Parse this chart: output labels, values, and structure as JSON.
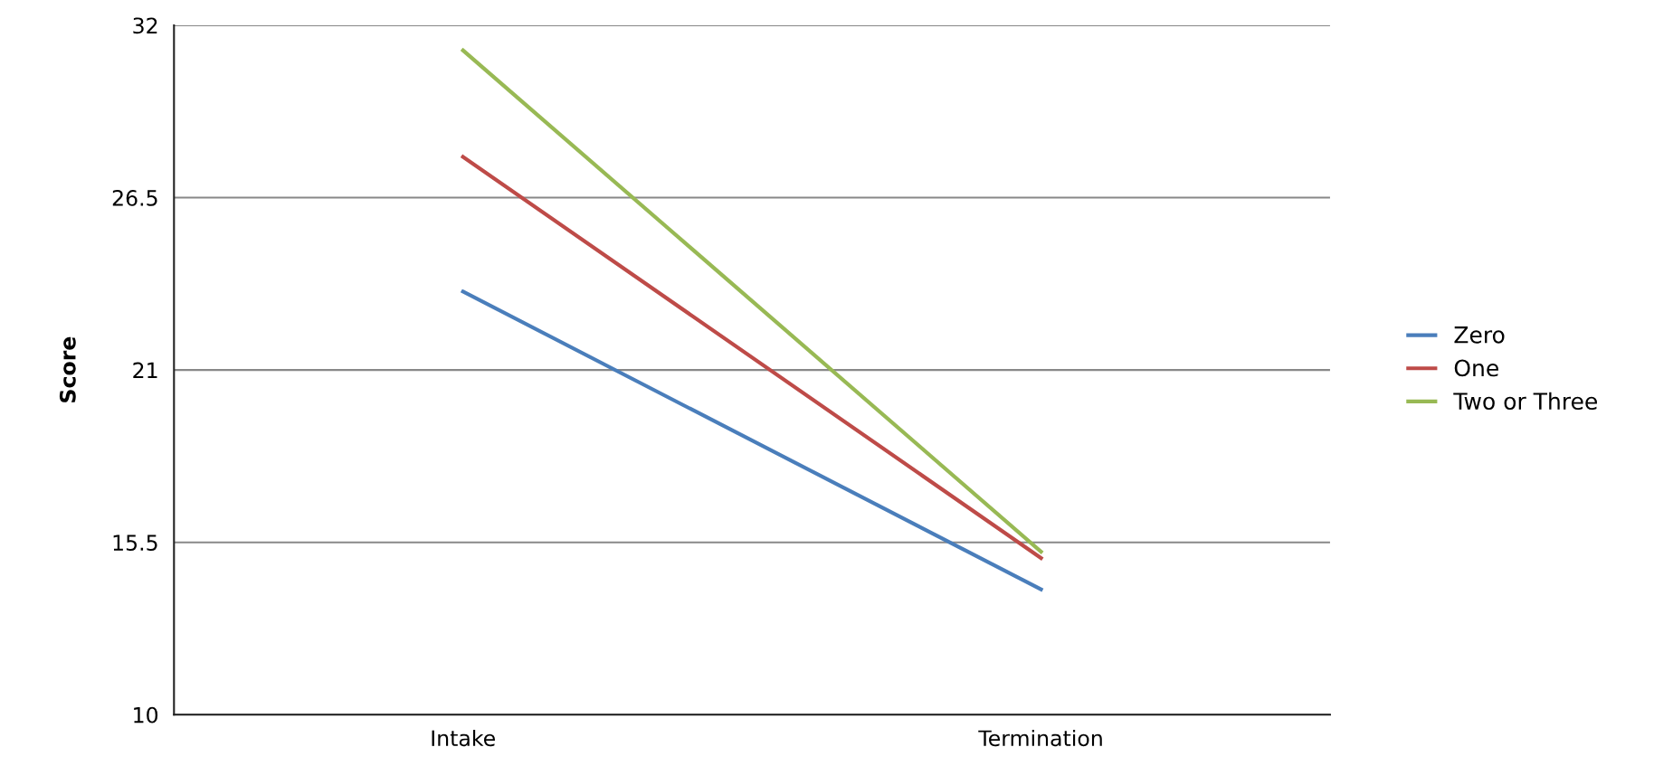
{
  "chart_data": {
    "type": "line",
    "ylabel": "Score",
    "categories": [
      "Intake",
      "Termination"
    ],
    "series": [
      {
        "name": "Zero",
        "color": "#4a7ebb",
        "values": [
          23.5,
          14.0
        ]
      },
      {
        "name": "One",
        "color": "#be4b48",
        "values": [
          27.8,
          15.0
        ]
      },
      {
        "name": "Two or Three",
        "color": "#98b954",
        "values": [
          31.2,
          15.2
        ]
      }
    ],
    "ylim": [
      10,
      32
    ],
    "yticks": [
      10,
      15.5,
      21,
      26.5,
      32
    ],
    "grid": "y",
    "legend": "right",
    "marker": "none",
    "line_style": "solid"
  }
}
